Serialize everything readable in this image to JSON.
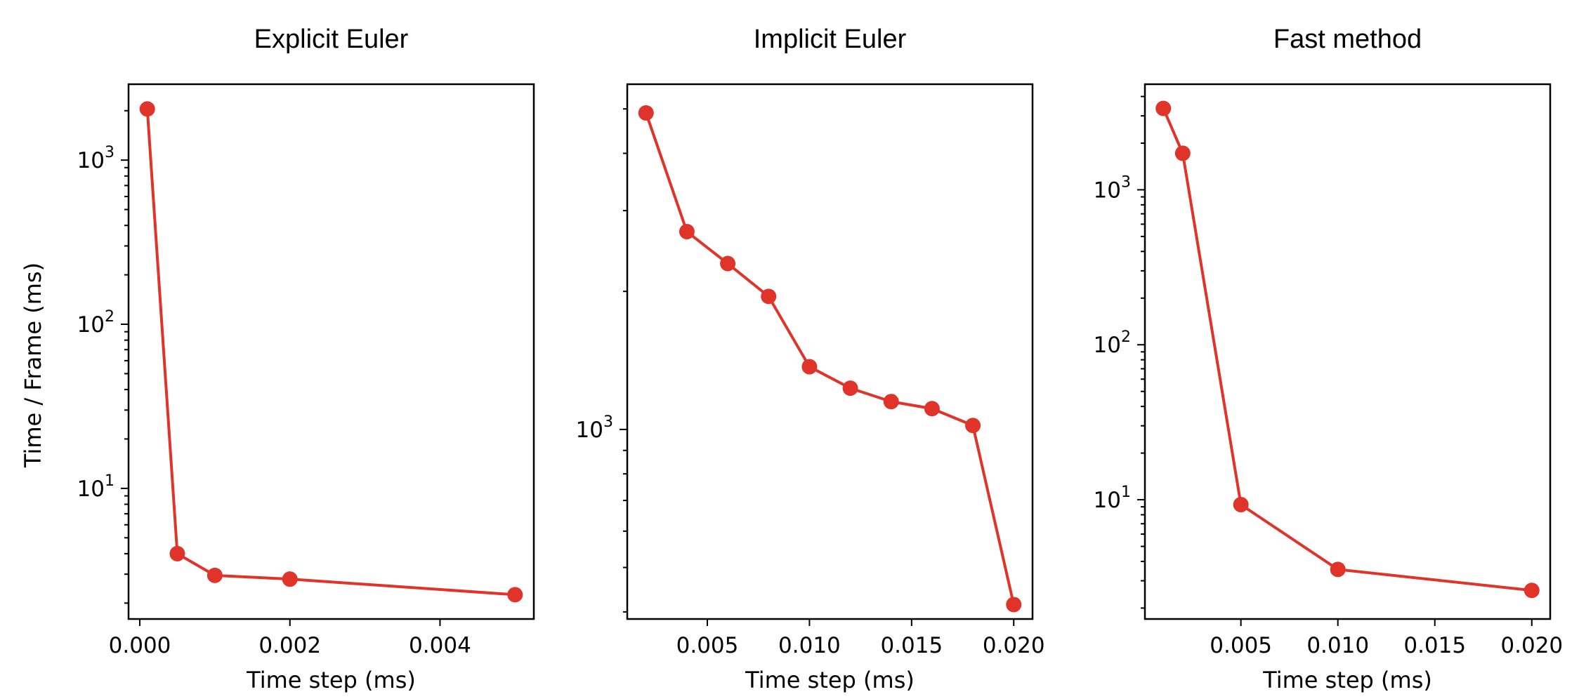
{
  "figure": {
    "ylabel": "Time / Frame (ms)"
  },
  "chart_data": [
    {
      "type": "line",
      "title": "Explicit Euler",
      "xlabel": "Time step (ms)",
      "yscale": "log",
      "xlim": [
        -0.00015,
        0.00525
      ],
      "ylim": [
        1.6,
        2900
      ],
      "xticks": [
        0.0,
        0.002,
        0.004
      ],
      "xtick_labels": [
        "0.000",
        "0.002",
        "0.004"
      ],
      "yticks_major": [
        10,
        100,
        1000
      ],
      "ytick_labels": [
        {
          "base": "10",
          "exp": "1"
        },
        {
          "base": "10",
          "exp": "2"
        },
        {
          "base": "10",
          "exp": "3"
        }
      ],
      "color": "#e0342a",
      "x": [
        0.0001,
        0.0005,
        0.001,
        0.002,
        0.005
      ],
      "y": [
        2050,
        4.0,
        2.95,
        2.8,
        2.25
      ]
    },
    {
      "type": "line",
      "title": "Implicit Euler",
      "xlabel": "Time step (ms)",
      "yscale": "log",
      "xlim": [
        0.00108,
        0.02092
      ],
      "ylim": [
        386,
        5660
      ],
      "xticks": [
        0.005,
        0.01,
        0.015,
        0.02
      ],
      "xtick_labels": [
        "0.005",
        "0.010",
        "0.015",
        "0.020"
      ],
      "yticks_major": [
        1000
      ],
      "ytick_labels": [
        {
          "base": "10",
          "exp": "3"
        }
      ],
      "color": "#e0342a",
      "x": [
        0.002,
        0.004,
        0.006,
        0.008,
        0.01,
        0.012,
        0.014,
        0.016,
        0.018,
        0.02
      ],
      "y": [
        4900,
        2700,
        2300,
        1950,
        1370,
        1230,
        1150,
        1110,
        1020,
        415
      ]
    },
    {
      "type": "line",
      "title": "Fast method",
      "xlabel": "Time step (ms)",
      "yscale": "log",
      "xlim": [
        5e-05,
        0.02095
      ],
      "ylim": [
        1.7,
        4800
      ],
      "xticks": [
        0.005,
        0.01,
        0.015,
        0.02
      ],
      "xtick_labels": [
        "0.005",
        "0.010",
        "0.015",
        "0.020"
      ],
      "yticks_major": [
        10,
        100,
        1000
      ],
      "ytick_labels": [
        {
          "base": "10",
          "exp": "1"
        },
        {
          "base": "10",
          "exp": "2"
        },
        {
          "base": "10",
          "exp": "3"
        }
      ],
      "color": "#e0342a",
      "x": [
        0.001,
        0.002,
        0.005,
        0.01,
        0.02
      ],
      "y": [
        3350,
        1720,
        9.3,
        3.55,
        2.6
      ]
    }
  ]
}
